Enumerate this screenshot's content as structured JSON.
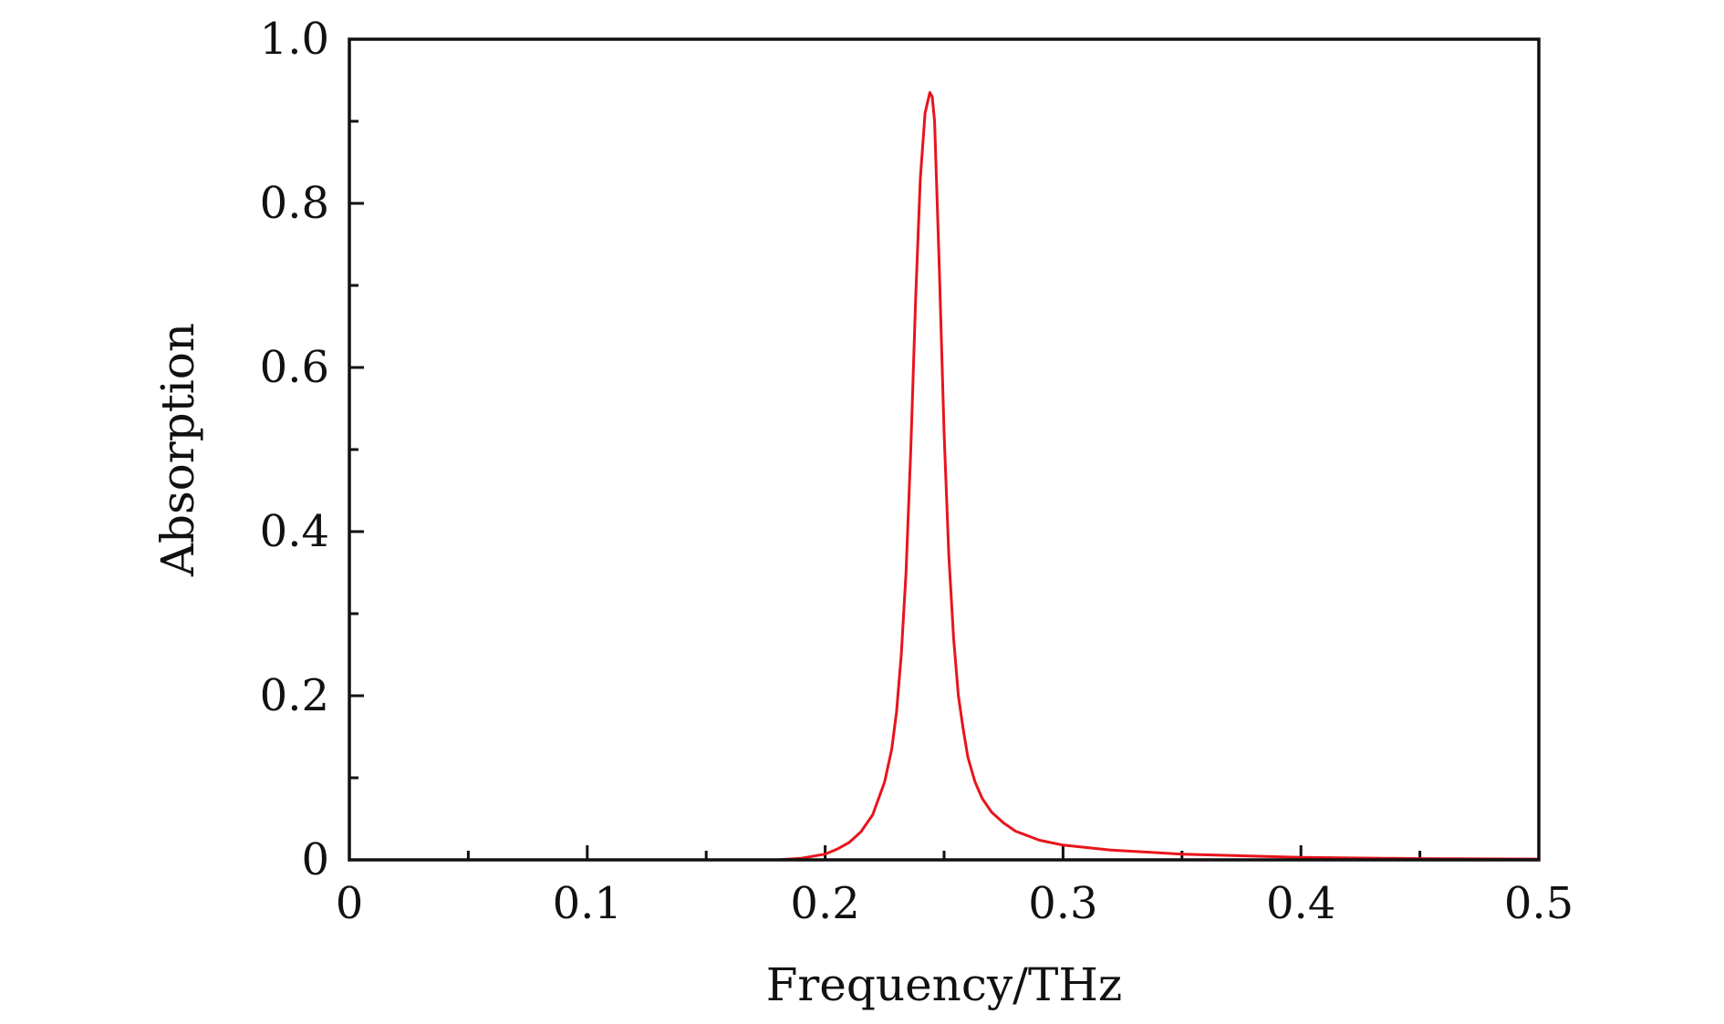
{
  "chart_data": {
    "type": "line",
    "title": "",
    "xlabel": "Frequency/THz",
    "ylabel": "Absorption",
    "xlim": [
      0,
      0.5
    ],
    "ylim": [
      0,
      1.0
    ],
    "x_ticks": [
      0,
      0.1,
      0.2,
      0.3,
      0.4,
      0.5
    ],
    "x_tick_labels": [
      "0",
      "0.1",
      "0.2",
      "0.3",
      "0.4",
      "0.5"
    ],
    "x_minor_ticks": [
      0.05,
      0.15,
      0.25,
      0.35,
      0.45
    ],
    "y_ticks": [
      0,
      0.2,
      0.4,
      0.6,
      0.8,
      1.0
    ],
    "y_tick_labels": [
      "0",
      "0.2",
      "0.4",
      "0.6",
      "0.8",
      "1.0"
    ],
    "y_minor_ticks": [
      0.1,
      0.3,
      0.5,
      0.7,
      0.9
    ],
    "grid": false,
    "legend": "none",
    "series": [
      {
        "color": "#e8141c",
        "x": [
          0.18,
          0.19,
          0.2,
          0.205,
          0.21,
          0.215,
          0.22,
          0.225,
          0.228,
          0.23,
          0.232,
          0.234,
          0.236,
          0.238,
          0.24,
          0.242,
          0.244,
          0.245,
          0.246,
          0.248,
          0.25,
          0.252,
          0.254,
          0.256,
          0.258,
          0.26,
          0.263,
          0.266,
          0.27,
          0.275,
          0.28,
          0.29,
          0.3,
          0.32,
          0.35,
          0.4,
          0.45,
          0.5
        ],
        "y": [
          0.0,
          0.002,
          0.007,
          0.013,
          0.021,
          0.034,
          0.055,
          0.095,
          0.135,
          0.18,
          0.25,
          0.35,
          0.5,
          0.68,
          0.83,
          0.91,
          0.935,
          0.93,
          0.9,
          0.72,
          0.52,
          0.37,
          0.27,
          0.2,
          0.16,
          0.125,
          0.095,
          0.075,
          0.058,
          0.045,
          0.035,
          0.024,
          0.018,
          0.012,
          0.007,
          0.003,
          0.0015,
          0.001
        ]
      }
    ]
  }
}
